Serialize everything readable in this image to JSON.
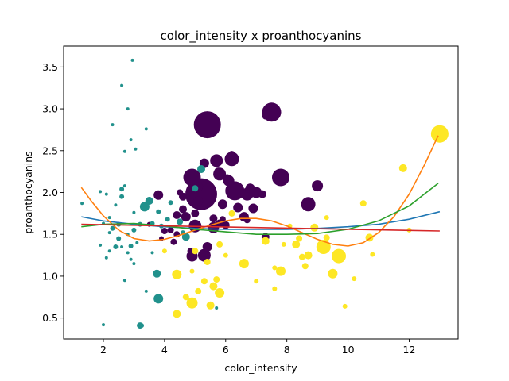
{
  "chart_data": {
    "type": "scatter",
    "title": "color_intensity x proanthocyanins",
    "xlabel": "color_intensity",
    "ylabel": "proanthocyanins",
    "xlim": [
      0.7,
      13.6
    ],
    "ylim": [
      0.25,
      3.75
    ],
    "xticks": [
      2,
      4,
      6,
      8,
      10,
      12
    ],
    "yticks": [
      0.5,
      1.0,
      1.5,
      2.0,
      2.5,
      3.0,
      3.5
    ],
    "grid": false,
    "legend": "none",
    "colors": {
      "class_0": "#440154",
      "class_1": "#21918c",
      "class_2": "#fde725",
      "border": "#000000"
    },
    "point_groups": [
      {
        "color": "#440154",
        "points": [
          [
            5.4,
            2.81,
            17
          ],
          [
            7.5,
            2.96,
            12
          ],
          [
            5.2,
            1.98,
            20
          ],
          [
            4.9,
            2.18,
            11
          ],
          [
            5.7,
            2.38,
            8
          ],
          [
            6.2,
            2.4,
            9
          ],
          [
            6.3,
            2.02,
            12
          ],
          [
            6.1,
            2.14,
            7
          ],
          [
            7.8,
            2.18,
            11
          ],
          [
            6.7,
            1.98,
            8
          ],
          [
            5.8,
            2.22,
            8
          ],
          [
            6.4,
            1.82,
            6
          ],
          [
            5.6,
            1.58,
            7
          ],
          [
            4.6,
            1.95,
            5
          ],
          [
            5.0,
            1.6,
            8
          ],
          [
            5.3,
            1.25,
            8
          ],
          [
            4.9,
            1.24,
            7
          ],
          [
            5.4,
            1.35,
            6
          ],
          [
            3.8,
            1.97,
            6
          ],
          [
            5.9,
            1.86,
            6
          ],
          [
            8.7,
            1.86,
            9
          ],
          [
            9.0,
            2.08,
            7
          ],
          [
            6.9,
            1.81,
            6
          ],
          [
            7.0,
            2.0,
            7
          ],
          [
            6.8,
            2.05,
            6
          ],
          [
            5.1,
            2.07,
            6
          ],
          [
            4.4,
            1.73,
            5
          ],
          [
            4.2,
            1.55,
            4
          ],
          [
            6.6,
            1.71,
            6
          ],
          [
            5.6,
            1.69,
            5
          ],
          [
            4.7,
            1.71,
            6
          ],
          [
            6.0,
            1.61,
            5
          ],
          [
            4.0,
            1.54,
            4
          ],
          [
            4.3,
            1.41,
            4
          ],
          [
            5.8,
            1.63,
            5
          ],
          [
            7.3,
            1.47,
            5
          ],
          [
            7.3,
            2.91,
            4
          ],
          [
            4.5,
            2.0,
            4
          ],
          [
            5.0,
            1.75,
            5
          ],
          [
            5.3,
            2.35,
            6
          ],
          [
            4.4,
            1.5,
            4
          ],
          [
            4.6,
            1.8,
            5
          ],
          [
            5.1,
            1.9,
            6
          ],
          [
            6.2,
            2.45,
            5
          ],
          [
            3.5,
            1.62,
            3
          ],
          [
            3.9,
            1.45,
            3
          ],
          [
            6.7,
            1.67,
            4
          ],
          [
            7.2,
            1.98,
            5
          ],
          [
            5.9,
            1.68,
            4
          ],
          [
            5.75,
            2.25,
            5
          ],
          [
            4.85,
            1.3,
            4
          ],
          [
            6.05,
            2.18,
            4
          ]
        ]
      },
      {
        "color": "#21918c",
        "points": [
          [
            2.6,
            3.28,
            2
          ],
          [
            2.8,
            3.0,
            2
          ],
          [
            2.9,
            2.63,
            2
          ],
          [
            3.05,
            2.52,
            2
          ],
          [
            2.7,
            2.49,
            2
          ],
          [
            3.4,
            2.76,
            2
          ],
          [
            2.3,
            2.81,
            2
          ],
          [
            2.95,
            3.58,
            2
          ],
          [
            2.6,
            2.04,
            3
          ],
          [
            2.6,
            1.95,
            3
          ],
          [
            2.4,
            1.85,
            2
          ],
          [
            2.2,
            1.7,
            2
          ],
          [
            2.0,
            1.63,
            2
          ],
          [
            2.3,
            1.57,
            3
          ],
          [
            2.5,
            1.45,
            3
          ],
          [
            2.9,
            1.36,
            3
          ],
          [
            3.0,
            1.55,
            3
          ],
          [
            3.2,
            1.62,
            3
          ],
          [
            3.35,
            1.83,
            6
          ],
          [
            3.5,
            1.9,
            5
          ],
          [
            3.6,
            1.63,
            3
          ],
          [
            3.8,
            1.77,
            3
          ],
          [
            4.1,
            1.68,
            3
          ],
          [
            4.5,
            1.65,
            4
          ],
          [
            3.2,
            0.41,
            4
          ],
          [
            3.25,
            0.41,
            3
          ],
          [
            3.75,
            1.03,
            5
          ],
          [
            3.8,
            0.73,
            6
          ],
          [
            3.0,
            1.15,
            2
          ],
          [
            2.7,
            0.95,
            2
          ],
          [
            2.0,
            0.42,
            2
          ],
          [
            3.4,
            0.82,
            2
          ],
          [
            2.1,
            1.22,
            2
          ],
          [
            1.9,
            1.37,
            2
          ],
          [
            2.2,
            1.52,
            2
          ],
          [
            2.4,
            1.35,
            3
          ],
          [
            2.8,
            1.28,
            2
          ],
          [
            1.3,
            1.87,
            2
          ],
          [
            1.9,
            2.01,
            2
          ],
          [
            2.1,
            1.98,
            2
          ],
          [
            2.7,
            2.08,
            2
          ],
          [
            3.0,
            1.76,
            2
          ],
          [
            2.5,
            1.62,
            3
          ],
          [
            3.1,
            1.4,
            2
          ],
          [
            3.6,
            1.28,
            2
          ],
          [
            2.8,
            1.5,
            2
          ],
          [
            2.6,
            1.35,
            2
          ],
          [
            5.7,
            0.62,
            2
          ],
          [
            4.7,
            1.47,
            5
          ],
          [
            5.0,
            2.05,
            4
          ],
          [
            5.2,
            2.28,
            5
          ],
          [
            3.9,
            1.6,
            3
          ],
          [
            4.2,
            1.88,
            3
          ],
          [
            4.6,
            1.52,
            3
          ],
          [
            2.2,
            1.3,
            2
          ],
          [
            2.9,
            1.2,
            2
          ]
        ]
      },
      {
        "color": "#fde725",
        "points": [
          [
            13.0,
            2.7,
            11
          ],
          [
            11.8,
            2.29,
            5
          ],
          [
            10.5,
            1.87,
            4
          ],
          [
            10.7,
            1.46,
            5
          ],
          [
            10.8,
            1.26,
            3
          ],
          [
            9.7,
            1.24,
            9
          ],
          [
            9.2,
            1.35,
            9
          ],
          [
            9.5,
            1.03,
            6
          ],
          [
            9.9,
            0.64,
            3
          ],
          [
            10.2,
            0.97,
            3
          ],
          [
            9.3,
            1.46,
            4
          ],
          [
            8.9,
            1.58,
            5
          ],
          [
            8.7,
            1.25,
            5
          ],
          [
            8.5,
            1.23,
            4
          ],
          [
            8.6,
            1.12,
            4
          ],
          [
            8.4,
            1.45,
            4
          ],
          [
            8.3,
            1.38,
            5
          ],
          [
            7.8,
            1.06,
            6
          ],
          [
            7.3,
            1.42,
            5
          ],
          [
            7.6,
            1.1,
            3
          ],
          [
            7.0,
            0.94,
            3
          ],
          [
            6.6,
            1.15,
            6
          ],
          [
            5.8,
            0.8,
            6
          ],
          [
            5.6,
            0.88,
            5
          ],
          [
            5.7,
            0.96,
            4
          ],
          [
            5.5,
            0.65,
            5
          ],
          [
            5.3,
            0.94,
            4
          ],
          [
            5.1,
            0.82,
            4
          ],
          [
            4.9,
            0.68,
            7
          ],
          [
            4.4,
            1.02,
            6
          ],
          [
            4.4,
            0.55,
            5
          ],
          [
            4.7,
            0.75,
            4
          ],
          [
            4.9,
            1.06,
            3
          ],
          [
            5.4,
            1.17,
            4
          ],
          [
            5.8,
            1.38,
            4
          ],
          [
            5.0,
            1.3,
            4
          ],
          [
            4.0,
            1.3,
            3
          ],
          [
            6.2,
            1.75,
            4
          ],
          [
            7.6,
            0.85,
            3
          ],
          [
            9.3,
            1.7,
            3
          ],
          [
            12.0,
            1.55,
            3
          ],
          [
            7.9,
            1.38,
            3
          ],
          [
            8.1,
            1.6,
            3
          ],
          [
            6.0,
            1.25,
            3
          ]
        ]
      }
    ],
    "lines": [
      {
        "color": "#1f77b4",
        "x": [
          1.28,
          2,
          3,
          4,
          5,
          6,
          7,
          8,
          9,
          10,
          11,
          12,
          13.0
        ],
        "y": [
          1.71,
          1.66,
          1.62,
          1.59,
          1.57,
          1.56,
          1.56,
          1.56,
          1.57,
          1.59,
          1.62,
          1.68,
          1.77
        ]
      },
      {
        "color": "#ff7f0e",
        "x": [
          1.28,
          1.6,
          2,
          2.5,
          3,
          3.5,
          4,
          4.5,
          5,
          5.5,
          6,
          6.5,
          7,
          7.5,
          8,
          8.5,
          9,
          9.5,
          10,
          10.5,
          11,
          11.5,
          12,
          12.5,
          12.95
        ],
        "y": [
          2.06,
          1.9,
          1.72,
          1.55,
          1.45,
          1.42,
          1.44,
          1.49,
          1.55,
          1.61,
          1.66,
          1.69,
          1.69,
          1.66,
          1.6,
          1.52,
          1.44,
          1.38,
          1.36,
          1.4,
          1.52,
          1.71,
          1.98,
          2.33,
          2.68
        ]
      },
      {
        "color": "#2ca02c",
        "x": [
          1.28,
          2,
          3,
          4,
          5,
          6,
          7,
          8,
          9,
          10,
          11,
          12,
          12.95
        ],
        "y": [
          1.59,
          1.62,
          1.63,
          1.6,
          1.56,
          1.53,
          1.5,
          1.5,
          1.51,
          1.56,
          1.66,
          1.84,
          2.11
        ]
      },
      {
        "color": "#d62728",
        "x": [
          1.28,
          13.0
        ],
        "y": [
          1.62,
          1.54
        ]
      }
    ]
  }
}
